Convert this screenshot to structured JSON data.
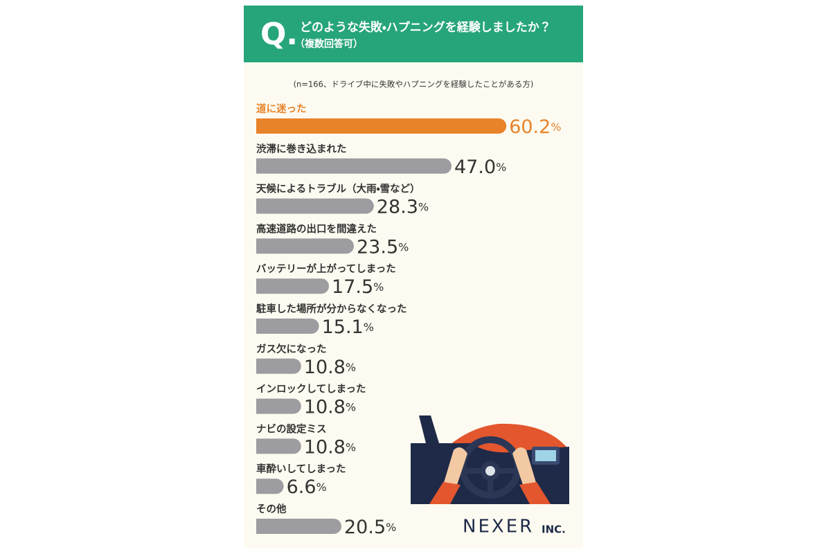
{
  "header": {
    "q_mark": "Q.",
    "title": "どのような失敗・ハプニングを経験しましたか？",
    "note": "（複数回答可）"
  },
  "chart_data": {
    "type": "bar",
    "subtitle": "(n=166、ドライブ中に失敗やハプニングを経験したことがある方)",
    "categories": [
      "道に迷った",
      "渋滞に巻き込まれた",
      "天候によるトラブル（大雨・雪など）",
      "高速道路の出口を間違えた",
      "バッテリーが上がってしまった",
      "駐車した場所が分からなくなった",
      "ガス欠になった",
      "インロックしてしまった",
      "ナビの設定ミス",
      "車酔いしてしまった",
      "その他"
    ],
    "values": [
      60.2,
      47.0,
      28.3,
      23.5,
      17.5,
      15.1,
      10.8,
      10.8,
      10.8,
      6.6,
      20.5
    ],
    "value_labels": [
      "60.2",
      "47.0",
      "28.3",
      "23.5",
      "17.5",
      "15.1",
      "10.8",
      "10.8",
      "10.8",
      "6.6",
      "20.5"
    ],
    "unit": "%",
    "colors": [
      "#e8832a",
      "#9c9ca1",
      "#9c9ca1",
      "#9c9ca1",
      "#9c9ca1",
      "#9c9ca1",
      "#9c9ca1",
      "#9c9ca1",
      "#9c9ca1",
      "#9c9ca1",
      "#9c9ca1"
    ],
    "label_colors": [
      "#e8832a",
      "#333333",
      "#333333",
      "#333333",
      "#333333",
      "#333333",
      "#333333",
      "#333333",
      "#333333",
      "#333333",
      "#333333"
    ]
  },
  "brand": {
    "name": "NEXER",
    "suffix": "INC."
  }
}
